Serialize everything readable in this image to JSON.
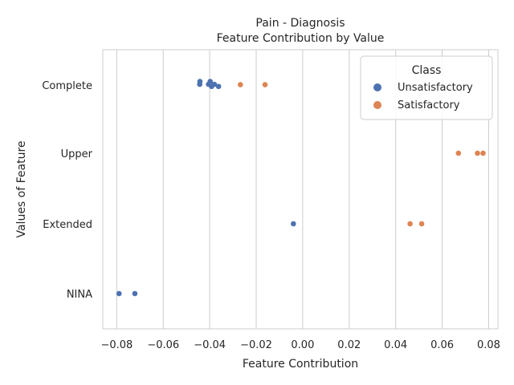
{
  "chart_data": {
    "type": "scatter",
    "title_line1": "Pain - Diagnosis",
    "title_line2": "Feature Contribution by Value",
    "xlabel": "Feature Contribution",
    "ylabel": "Values of Feature",
    "xlim": [
      -0.086,
      0.084
    ],
    "xticks": [
      -0.08,
      -0.06,
      -0.04,
      -0.02,
      0.0,
      0.02,
      0.04,
      0.06,
      0.08
    ],
    "xtick_labels": [
      "−0.08",
      "−0.06",
      "−0.04",
      "−0.02",
      "0.00",
      "0.02",
      "0.04",
      "0.06",
      "0.08"
    ],
    "categories": [
      "Complete",
      "Upper",
      "Extended",
      "NINA"
    ],
    "grid": true,
    "legend": {
      "title": "Class",
      "placement": "top-right",
      "entries": [
        {
          "name": "Unsatisfactory",
          "color": "#4c72b0"
        },
        {
          "name": "Satisfactory",
          "color": "#dd8452"
        }
      ]
    },
    "series": [
      {
        "name": "Unsatisfactory",
        "color": "#4c72b0",
        "points": [
          {
            "category": "Complete",
            "x": -0.0442,
            "offset": -0.1
          },
          {
            "category": "Complete",
            "x": -0.0443,
            "offset": -0.02
          },
          {
            "category": "Complete",
            "x": -0.0398,
            "offset": -0.1
          },
          {
            "category": "Complete",
            "x": -0.0405,
            "offset": -0.02
          },
          {
            "category": "Complete",
            "x": -0.038,
            "offset": -0.02
          },
          {
            "category": "Complete",
            "x": -0.0392,
            "offset": 0.04
          },
          {
            "category": "Complete",
            "x": -0.0362,
            "offset": 0.04
          },
          {
            "category": "Extended",
            "x": -0.004,
            "offset": 0.0
          },
          {
            "category": "NINA",
            "x": -0.079,
            "offset": 0.0
          },
          {
            "category": "NINA",
            "x": -0.0722,
            "offset": 0.0
          }
        ]
      },
      {
        "name": "Satisfactory",
        "color": "#dd8452",
        "points": [
          {
            "category": "Complete",
            "x": -0.0268,
            "offset": -0.01
          },
          {
            "category": "Complete",
            "x": -0.0162,
            "offset": -0.01
          },
          {
            "category": "Upper",
            "x": 0.067,
            "offset": 0.0
          },
          {
            "category": "Upper",
            "x": 0.0752,
            "offset": 0.0
          },
          {
            "category": "Upper",
            "x": 0.0776,
            "offset": 0.0
          },
          {
            "category": "Extended",
            "x": 0.0462,
            "offset": 0.0
          },
          {
            "category": "Extended",
            "x": 0.0512,
            "offset": 0.0
          }
        ]
      }
    ]
  }
}
